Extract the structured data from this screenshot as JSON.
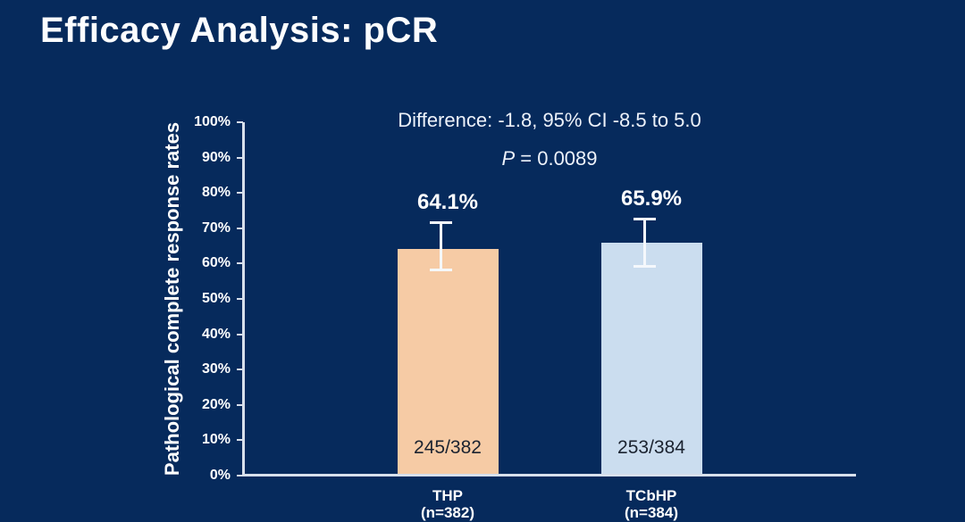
{
  "slide": {
    "title": "Efficacy Analysis: pCR"
  },
  "stats": {
    "difference": "Difference: -1.8, 95% CI -8.5 to 5.0",
    "p_label": "P",
    "p_value": " = 0.0089"
  },
  "chart_data": {
    "type": "bar",
    "title": "Efficacy Analysis: pCR",
    "ylabel": "Pathological complete response rates",
    "ylim": [
      0,
      100
    ],
    "yticks": [
      100,
      90,
      80,
      70,
      60,
      50,
      40,
      30,
      20,
      10,
      0
    ],
    "ytick_suffix": "%",
    "grid": false,
    "legend": "none",
    "categories": [
      "THP",
      "TCbHP"
    ],
    "category_sublabels": [
      "(n=382)",
      "(n=384)"
    ],
    "series": [
      {
        "name": "pCR",
        "values": [
          64.1,
          65.9
        ],
        "value_labels": [
          "64.1%",
          "65.9%"
        ],
        "count_labels": [
          "245/382",
          "253/384"
        ],
        "ci_low": [
          57.8,
          58.8
        ],
        "ci_high": [
          72.0,
          73.0
        ],
        "bar_colors": [
          "#F6CBA5",
          "#CBDDEF"
        ]
      }
    ],
    "annotations": [
      "Difference: -1.8, 95% CI -8.5 to 5.0",
      "P = 0.0089"
    ]
  },
  "colors": {
    "background": "#062A5C",
    "text": "#FFFFFF",
    "axis": "#D8E0EC",
    "error_bar": "#F5F8FC",
    "bar_count_text": "#1B2330",
    "bar_thp": "#F6CBA5",
    "bar_tcbhp": "#CBDDEF"
  }
}
